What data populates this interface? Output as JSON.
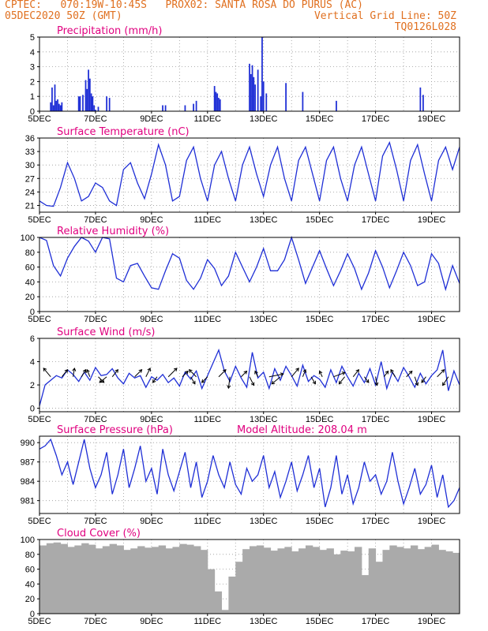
{
  "header": {
    "line1": "CPTEC:   070:19W-10:45S   PROX02: SANTA ROSA DO PURUS (AC)",
    "line2_left": "05DEC2020 50Z (GMT)",
    "line2_right": "Vertical Grid Line: 50Z",
    "line3_right": "TQ0126L028"
  },
  "colors": {
    "header": "#e07020",
    "title": "#e0007f",
    "line": "#1f2fd6",
    "bar": "#1f2fd6",
    "cloud": "#aaaaaa",
    "grid": "#999999",
    "axis": "#000000"
  },
  "x_ticks": [
    "5DEC",
    "7DEC",
    "9DEC",
    "11DEC",
    "13DEC",
    "15DEC",
    "17DEC",
    "19DEC"
  ],
  "chart_data": [
    {
      "id": "precip",
      "type": "bar",
      "title": "Precipitation (mm/h)",
      "ylim": [
        0,
        5
      ],
      "yticks": [
        0,
        1,
        2,
        3,
        4,
        5
      ],
      "xlim": [
        0,
        15
      ],
      "x": [
        0.4,
        0.45,
        0.5,
        0.55,
        0.6,
        0.65,
        0.7,
        0.75,
        0.8,
        1.4,
        1.45,
        1.55,
        1.65,
        1.7,
        1.75,
        1.8,
        1.85,
        1.9,
        1.95,
        2.0,
        2.1,
        2.4,
        2.5,
        4.4,
        4.5,
        5.2,
        5.5,
        5.6,
        6.25,
        6.3,
        6.35,
        6.4,
        6.45,
        7.5,
        7.55,
        7.6,
        7.65,
        7.7,
        7.8,
        7.9,
        7.95,
        8.0,
        8.1,
        8.8,
        9.4,
        10.6,
        13.6,
        13.7
      ],
      "values": [
        0.6,
        1.6,
        0.4,
        1.8,
        0.7,
        0.8,
        0.5,
        0.4,
        0.6,
        1.0,
        1.0,
        1.1,
        2.1,
        1.5,
        2.8,
        2.2,
        1.2,
        1.0,
        0.4,
        0.1,
        0.3,
        1.0,
        0.9,
        0.4,
        0.4,
        0.4,
        0.5,
        0.7,
        1.7,
        1.3,
        1.2,
        0.9,
        0.8,
        3.2,
        2.5,
        3.1,
        2.3,
        1.8,
        2.8,
        1.0,
        5.0,
        2.0,
        1.2,
        1.9,
        1.3,
        0.7,
        1.6,
        1.1
      ]
    },
    {
      "id": "temp",
      "type": "line",
      "title": "Surface Temperature (nC)",
      "ylim": [
        19.5,
        36
      ],
      "yticks": [
        21,
        24,
        27,
        30,
        33,
        36
      ],
      "xlim": [
        0,
        15
      ],
      "x": [
        0,
        0.25,
        0.5,
        0.75,
        1.0,
        1.25,
        1.5,
        1.75,
        2.0,
        2.25,
        2.5,
        2.75,
        3.0,
        3.25,
        3.5,
        3.75,
        4.0,
        4.25,
        4.5,
        4.75,
        5.0,
        5.25,
        5.5,
        5.75,
        6.0,
        6.25,
        6.5,
        6.75,
        7.0,
        7.25,
        7.5,
        7.75,
        8.0,
        8.25,
        8.5,
        8.75,
        9.0,
        9.25,
        9.5,
        9.75,
        10.0,
        10.25,
        10.5,
        10.75,
        11.0,
        11.25,
        11.5,
        11.75,
        12.0,
        12.25,
        12.5,
        12.75,
        13.0,
        13.25,
        13.5,
        13.75,
        14.0,
        14.25,
        14.5,
        14.75,
        15.0
      ],
      "values": [
        22,
        21,
        20.8,
        25,
        30.5,
        27,
        22,
        23,
        26,
        25,
        22,
        21,
        29,
        30.5,
        26,
        22.5,
        28,
        34.5,
        30,
        22,
        23,
        31,
        34,
        27,
        22,
        30,
        33,
        27,
        22,
        30,
        34,
        28,
        23,
        30,
        34,
        27,
        22,
        31,
        34,
        28,
        22,
        31,
        34,
        27,
        22,
        30,
        34,
        28,
        22,
        32,
        35,
        29,
        22,
        31,
        34.5,
        28,
        22,
        31,
        34,
        29,
        34
      ]
    },
    {
      "id": "rh",
      "type": "line",
      "title": "Relative Humidity (%)",
      "ylim": [
        0,
        100
      ],
      "yticks": [
        0,
        20,
        40,
        60,
        80,
        100
      ],
      "xlim": [
        0,
        15
      ],
      "x": [
        0,
        0.25,
        0.5,
        0.75,
        1.0,
        1.25,
        1.5,
        1.75,
        2.0,
        2.25,
        2.5,
        2.75,
        3.0,
        3.25,
        3.5,
        3.75,
        4.0,
        4.25,
        4.5,
        4.75,
        5.0,
        5.25,
        5.5,
        5.75,
        6.0,
        6.25,
        6.5,
        6.75,
        7.0,
        7.25,
        7.5,
        7.75,
        8.0,
        8.25,
        8.5,
        8.75,
        9.0,
        9.25,
        9.5,
        9.75,
        10.0,
        10.25,
        10.5,
        10.75,
        11.0,
        11.25,
        11.5,
        11.75,
        12.0,
        12.25,
        12.5,
        12.75,
        13.0,
        13.25,
        13.5,
        13.75,
        14.0,
        14.25,
        14.5,
        14.75,
        15.0
      ],
      "values": [
        100,
        96,
        62,
        48,
        72,
        88,
        100,
        95,
        80,
        100,
        98,
        45,
        40,
        62,
        65,
        48,
        32,
        30,
        55,
        78,
        72,
        42,
        30,
        45,
        70,
        58,
        35,
        48,
        80,
        60,
        40,
        60,
        85,
        55,
        55,
        70,
        100,
        70,
        38,
        60,
        82,
        58,
        35,
        55,
        78,
        58,
        30,
        52,
        82,
        60,
        32,
        55,
        80,
        62,
        35,
        40,
        78,
        65,
        30,
        62,
        38
      ]
    },
    {
      "id": "wind",
      "type": "line",
      "title": "Surface Wind (m/s)",
      "ylim": [
        -0.3,
        6
      ],
      "yticks": [
        0,
        2,
        4,
        6
      ],
      "xlim": [
        0,
        15
      ],
      "x": [
        0,
        0.2,
        0.4,
        0.6,
        0.8,
        1.0,
        1.2,
        1.4,
        1.6,
        1.8,
        2.0,
        2.2,
        2.4,
        2.6,
        2.8,
        3.0,
        3.2,
        3.4,
        3.6,
        3.8,
        4.0,
        4.2,
        4.4,
        4.6,
        4.8,
        5.0,
        5.2,
        5.4,
        5.6,
        5.8,
        6.0,
        6.2,
        6.4,
        6.6,
        6.8,
        7.0,
        7.2,
        7.4,
        7.6,
        7.8,
        8.0,
        8.2,
        8.4,
        8.6,
        8.8,
        9.0,
        9.2,
        9.4,
        9.6,
        9.8,
        10.0,
        10.2,
        10.4,
        10.6,
        10.8,
        11.0,
        11.2,
        11.4,
        11.6,
        11.8,
        12.0,
        12.2,
        12.4,
        12.6,
        12.8,
        13.0,
        13.2,
        13.4,
        13.6,
        13.8,
        14.0,
        14.2,
        14.4,
        14.6,
        14.8,
        15.0
      ],
      "values": [
        0.2,
        2.0,
        2.4,
        2.8,
        2.6,
        3.3,
        2.9,
        2.3,
        3.1,
        2.4,
        3.5,
        2.8,
        2.9,
        3.4,
        2.6,
        2.1,
        3.0,
        2.6,
        2.8,
        1.8,
        2.7,
        2.4,
        2.9,
        2.2,
        2.6,
        1.9,
        3.1,
        2.5,
        3.2,
        1.7,
        2.8,
        3.9,
        5.0,
        3.2,
        2.3,
        3.6,
        2.6,
        1.8,
        4.8,
        2.6,
        3.1,
        1.7,
        3.4,
        2.4,
        3.6,
        2.8,
        1.9,
        3.7,
        2.3,
        2.8,
        2.5,
        1.8,
        3.3,
        2.2,
        3.6,
        2.7,
        1.9,
        3.0,
        2.2,
        3.4,
        2.0,
        4.0,
        1.7,
        3.1,
        2.3,
        3.5,
        2.7,
        1.8,
        3.0,
        2.1,
        2.8,
        3.3,
        5.0,
        1.5,
        3.2,
        2.0
      ],
      "vectors": {
        "x": [
          0.4,
          0.8,
          1.2,
          1.5,
          1.8,
          2.1,
          2.4,
          2.6,
          3.4,
          3.8,
          4.2,
          4.6,
          5.1,
          5.4,
          5.6,
          6.0,
          6.4,
          6.8,
          7.2,
          7.5,
          7.8,
          8.2,
          8.6,
          9.0,
          9.4,
          9.7,
          10.1,
          10.5,
          10.9,
          11.2,
          11.6,
          12.0,
          12.3,
          12.7,
          13.1,
          13.4,
          13.8,
          14.2,
          14.6
        ],
        "u": [
          -0.5,
          0.4,
          0.1,
          0.3,
          -0.2,
          0.4,
          -0.5,
          0.4,
          0.5,
          0.3,
          -0.3,
          0.6,
          0.4,
          0.3,
          -0.5,
          -0.4,
          0.5,
          -0.1,
          0.4,
          0.3,
          -0.2,
          1.0,
          -0.6,
          0.5,
          0.2,
          0.3,
          -0.2,
          0.8,
          -0.4,
          0.4,
          0.3,
          0.1,
          0.3,
          -0.3,
          0.4,
          0.2,
          -0.3,
          0.5,
          -0.4
        ],
        "v": [
          0.6,
          0.5,
          0.6,
          0.5,
          0.5,
          -0.4,
          -0.4,
          0.5,
          0.5,
          0.6,
          -0.4,
          0.6,
          0.4,
          -0.5,
          0.5,
          -0.4,
          0.5,
          -0.8,
          0.4,
          -0.6,
          0.4,
          0.2,
          -0.5,
          0.6,
          0.5,
          -0.5,
          0.4,
          0.3,
          -0.5,
          0.5,
          -0.4,
          -0.6,
          0.4,
          0.5,
          0.4,
          -0.6,
          -0.4,
          0.5,
          -0.6
        ]
      }
    },
    {
      "id": "pressure",
      "type": "line",
      "title": "Surface Pressure (hPa)",
      "subtitle": "Model Altitude: 208.04 m",
      "ylim": [
        979,
        991
      ],
      "yticks": [
        981,
        984,
        987,
        990
      ],
      "xlim": [
        0,
        15
      ],
      "x": [
        0,
        0.2,
        0.4,
        0.6,
        0.8,
        1.0,
        1.2,
        1.4,
        1.6,
        1.8,
        2.0,
        2.2,
        2.4,
        2.6,
        2.8,
        3.0,
        3.2,
        3.4,
        3.6,
        3.8,
        4.0,
        4.2,
        4.4,
        4.6,
        4.8,
        5.0,
        5.2,
        5.4,
        5.6,
        5.8,
        6.0,
        6.2,
        6.4,
        6.6,
        6.8,
        7.0,
        7.2,
        7.4,
        7.6,
        7.8,
        8.0,
        8.2,
        8.4,
        8.6,
        8.8,
        9.0,
        9.2,
        9.4,
        9.6,
        9.8,
        10.0,
        10.2,
        10.4,
        10.6,
        10.8,
        11.0,
        11.2,
        11.4,
        11.6,
        11.8,
        12.0,
        12.2,
        12.4,
        12.6,
        12.8,
        13.0,
        13.2,
        13.4,
        13.6,
        13.8,
        14.0,
        14.2,
        14.4,
        14.6,
        14.8,
        15.0
      ],
      "values": [
        989,
        989.5,
        990.5,
        988,
        985,
        987,
        983.5,
        987,
        990.5,
        986,
        983,
        985,
        988.5,
        982,
        985,
        989,
        983,
        986,
        989.5,
        984,
        986,
        982,
        989,
        985,
        982.5,
        985.5,
        988.5,
        983,
        987,
        981.5,
        984,
        988,
        985,
        983,
        987,
        983.5,
        982,
        986,
        984,
        985,
        988,
        983,
        985.5,
        981.5,
        984,
        987,
        982.5,
        985,
        988,
        983,
        986,
        980,
        983,
        988,
        982,
        985,
        980.5,
        983,
        987,
        984,
        985,
        982,
        984,
        988.5,
        984,
        980.5,
        983,
        986,
        982,
        983.5,
        986.5,
        981.5,
        985,
        980,
        981,
        983
      ]
    },
    {
      "id": "cloud",
      "type": "bar",
      "title": "Cloud Cover (%)",
      "ylim": [
        0,
        100
      ],
      "yticks": [
        0,
        20,
        40,
        60,
        80,
        100
      ],
      "xlim": [
        0,
        15
      ],
      "x": [
        0,
        0.25,
        0.5,
        0.75,
        1.0,
        1.25,
        1.5,
        1.75,
        2.0,
        2.25,
        2.5,
        2.75,
        3.0,
        3.25,
        3.5,
        3.75,
        4.0,
        4.25,
        4.5,
        4.75,
        5.0,
        5.25,
        5.5,
        5.75,
        6.0,
        6.25,
        6.5,
        6.75,
        7.0,
        7.25,
        7.5,
        7.75,
        8.0,
        8.25,
        8.5,
        8.75,
        9.0,
        9.25,
        9.5,
        9.75,
        10.0,
        10.25,
        10.5,
        10.75,
        11.0,
        11.25,
        11.5,
        11.75,
        12.0,
        12.25,
        12.5,
        12.75,
        13.0,
        13.25,
        13.5,
        13.75,
        14.0,
        14.25,
        14.5,
        14.75
      ],
      "values": [
        92,
        95,
        96,
        94,
        90,
        92,
        95,
        93,
        88,
        91,
        94,
        92,
        86,
        88,
        91,
        89,
        90,
        92,
        88,
        90,
        94,
        93,
        91,
        86,
        60,
        30,
        5,
        50,
        70,
        87,
        91,
        92,
        89,
        85,
        88,
        90,
        84,
        88,
        92,
        90,
        86,
        88,
        80,
        85,
        84,
        90,
        52,
        88,
        70,
        86,
        92,
        90,
        88,
        92,
        87,
        90,
        93,
        86,
        84,
        82
      ]
    }
  ]
}
